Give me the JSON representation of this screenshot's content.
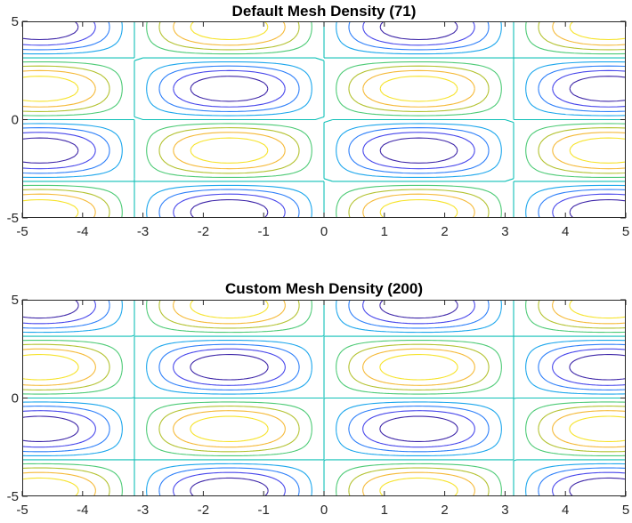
{
  "chart_data": [
    {
      "type": "contour",
      "title": "Default Mesh Density (71)",
      "function": "sin(x)*sin(y)",
      "xlim": [
        -5,
        5
      ],
      "ylim": [
        -5,
        5
      ],
      "mesh_density": 71,
      "levels": [
        -0.8,
        -0.6,
        -0.4,
        -0.2,
        0,
        0.2,
        0.4,
        0.6,
        0.8
      ],
      "x_ticks": [
        "-5",
        "-4",
        "-3",
        "-2",
        "-1",
        "0",
        "1",
        "2",
        "3",
        "4",
        "5"
      ],
      "y_ticks": [
        "-5",
        "0",
        "5"
      ],
      "colormap": [
        "#3e26a8",
        "#4746eb",
        "#2d7ff9",
        "#1ba6ec",
        "#11c0b7",
        "#4cca75",
        "#b3c230",
        "#f5b937",
        "#f6e32a"
      ],
      "grid": false
    },
    {
      "type": "contour",
      "title": "Custom Mesh Density (200)",
      "function": "sin(x)*sin(y)",
      "xlim": [
        -5,
        5
      ],
      "ylim": [
        -5,
        5
      ],
      "mesh_density": 200,
      "levels": [
        -0.8,
        -0.6,
        -0.4,
        -0.2,
        0,
        0.2,
        0.4,
        0.6,
        0.8
      ],
      "x_ticks": [
        "-5",
        "-4",
        "-3",
        "-2",
        "-1",
        "0",
        "1",
        "2",
        "3",
        "4",
        "5"
      ],
      "y_ticks": [
        "-5",
        "0",
        "5"
      ],
      "colormap": [
        "#3e26a8",
        "#4746eb",
        "#2d7ff9",
        "#1ba6ec",
        "#11c0b7",
        "#4cca75",
        "#b3c230",
        "#f5b937",
        "#f6e32a"
      ],
      "grid": false
    }
  ]
}
